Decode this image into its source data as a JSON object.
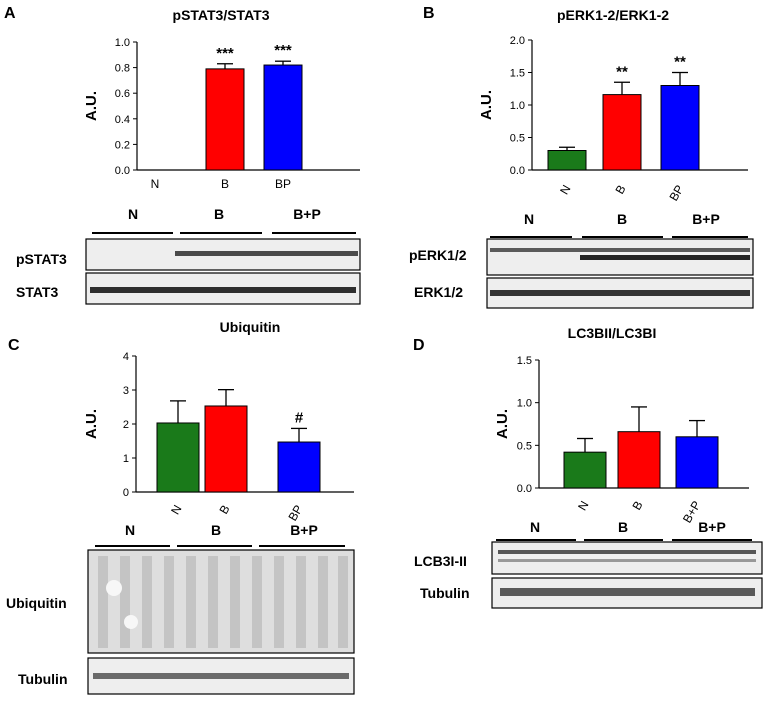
{
  "colors": {
    "N": "#1a7a1a",
    "B": "#ff0000",
    "BP": "#0000ff"
  },
  "chart_data": [
    {
      "id": "A",
      "type": "bar",
      "title": "pSTAT3/STAT3",
      "ylabel": "A.U.",
      "ylim": [
        0,
        1.0
      ],
      "yticks": [
        "0.0",
        "0.2",
        "0.4",
        "0.6",
        "0.8",
        "1.0"
      ],
      "categories": [
        "N",
        "B",
        "BP"
      ],
      "values": [
        0,
        0.79,
        0.82
      ],
      "errors": [
        0,
        0.04,
        0.03
      ],
      "annotations": [
        "",
        "***",
        "***"
      ],
      "blot": {
        "groups": [
          "N",
          "B",
          "B+P"
        ],
        "rows": [
          "pSTAT3",
          "STAT3"
        ]
      }
    },
    {
      "id": "B",
      "type": "bar",
      "title": "pERK1-2/ERK1-2",
      "ylabel": "A.U.",
      "ylim": [
        0,
        2.0
      ],
      "yticks": [
        "0.0",
        "0.5",
        "1.0",
        "1.5",
        "2.0"
      ],
      "categories": [
        "N",
        "B",
        "BP"
      ],
      "values": [
        0.3,
        1.16,
        1.3
      ],
      "errors": [
        0.05,
        0.19,
        0.2
      ],
      "annotations": [
        "",
        "**",
        "**"
      ],
      "blot": {
        "groups": [
          "N",
          "B",
          "B+P"
        ],
        "rows": [
          "pERK1/2",
          "ERK1/2"
        ]
      }
    },
    {
      "id": "C",
      "type": "bar",
      "title": "Ubiquitin",
      "ylabel": "A.U.",
      "ylim": [
        0,
        4
      ],
      "yticks": [
        "0",
        "1",
        "2",
        "3",
        "4"
      ],
      "categories": [
        "N",
        "B",
        "BP"
      ],
      "values": [
        2.03,
        2.53,
        1.47
      ],
      "errors": [
        0.65,
        0.48,
        0.4
      ],
      "annotations": [
        "",
        "",
        "#"
      ],
      "blot": {
        "groups": [
          "N",
          "B",
          "B+P"
        ],
        "rows": [
          "Ubiquitin",
          "Tubulin"
        ]
      }
    },
    {
      "id": "D",
      "type": "bar",
      "title": "LC3BII/LC3BI",
      "ylabel": "A.U.",
      "ylim": [
        0,
        1.5
      ],
      "yticks": [
        "0.0",
        "0.5",
        "1.0",
        "1.5"
      ],
      "categories": [
        "N",
        "B",
        "B+P"
      ],
      "values": [
        0.42,
        0.66,
        0.6
      ],
      "errors": [
        0.16,
        0.29,
        0.19
      ],
      "annotations": [
        "",
        "",
        ""
      ],
      "blot": {
        "groups": [
          "N",
          "B",
          "B+P"
        ],
        "rows": [
          "LCB3I-II",
          "Tubulin"
        ]
      }
    }
  ]
}
